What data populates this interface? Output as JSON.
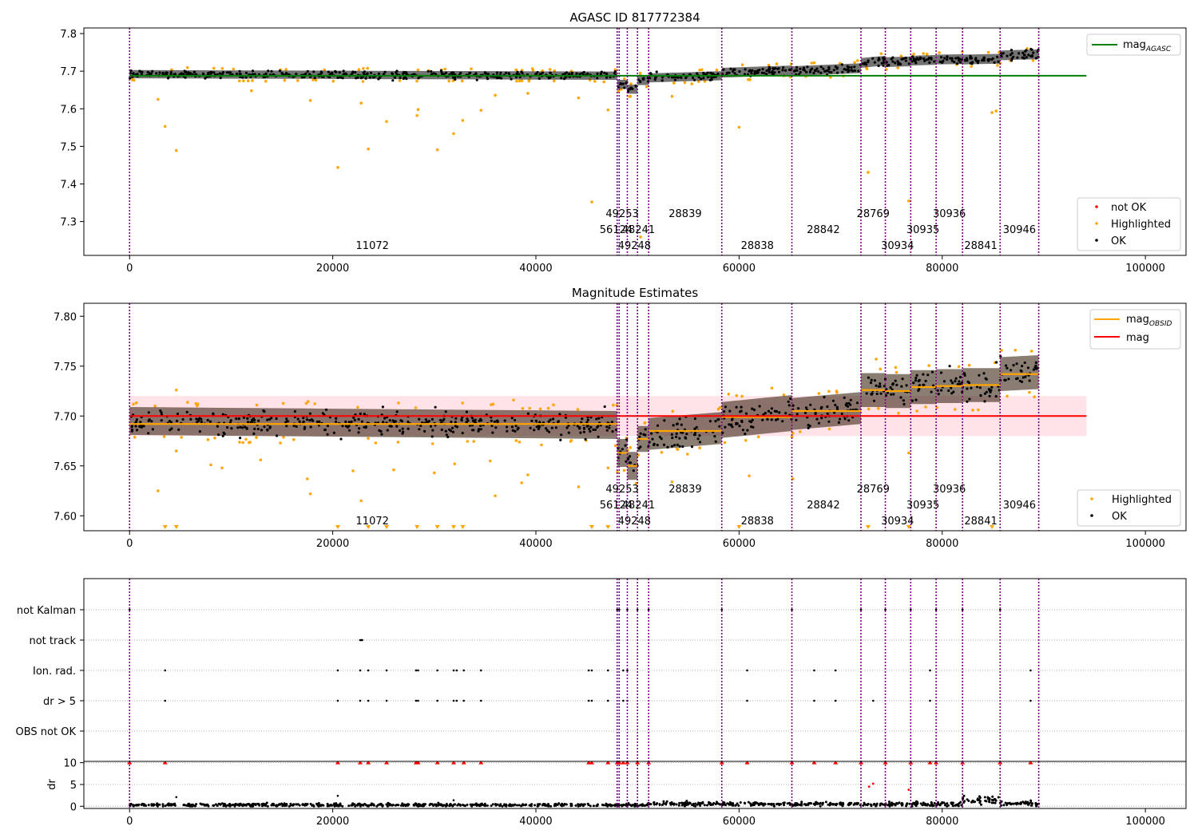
{
  "figure": {
    "background": "#ffffff"
  },
  "colors": {
    "ok": "#000000",
    "highlighted": "#ffa500",
    "not_ok": "#ff0000",
    "agasc_line": "#008000",
    "mag_line": "#ff0000",
    "obsid_mag": "#ffa500",
    "obs_boundary": "#800080",
    "band": "#ffc0cb",
    "grid": "#b0b0b0"
  },
  "chart_data": [
    {
      "type": "scatter",
      "title": "AGASC ID 817772384",
      "xlim": [
        -4500,
        104000
      ],
      "ylim": [
        7.21,
        7.815
      ],
      "xticks": [
        0,
        20000,
        40000,
        60000,
        80000,
        100000
      ],
      "yticks": [
        7.3,
        7.4,
        7.5,
        7.6,
        7.7,
        7.8
      ],
      "ytick_labels": [
        "7.3",
        "7.4",
        "7.5",
        "7.6",
        "7.7",
        "7.8"
      ],
      "agasc_mag": 7.688,
      "agasc_line_x": [
        0,
        94200
      ],
      "legend_upper": {
        "position": "upper right",
        "items": [
          {
            "label": "mag",
            "sub": "AGASC",
            "kind": "line",
            "color": "#008000"
          }
        ]
      },
      "legend_lower": {
        "position": "lower right",
        "items": [
          {
            "label": "not OK",
            "kind": "dot",
            "color": "#ff0000"
          },
          {
            "label": "Highlighted",
            "kind": "dot",
            "color": "#ffa500"
          },
          {
            "label": "OK",
            "kind": "dot",
            "color": "#000000"
          }
        ]
      },
      "ok_segments": [
        {
          "x0": 0,
          "x1": 48000,
          "start": 7.692,
          "end": 7.688,
          "half_width": 0.011
        },
        {
          "x0": 48000,
          "x1": 49000,
          "start": 7.665,
          "end": 7.665,
          "half_width": 0.012
        },
        {
          "x0": 49000,
          "x1": 50000,
          "start": 7.652,
          "end": 7.652,
          "half_width": 0.012
        },
        {
          "x0": 50000,
          "x1": 51100,
          "start": 7.675,
          "end": 7.675,
          "half_width": 0.012
        },
        {
          "x0": 51100,
          "x1": 58300,
          "start": 7.682,
          "end": 7.688,
          "half_width": 0.012
        },
        {
          "x0": 58300,
          "x1": 65200,
          "start": 7.696,
          "end": 7.702,
          "half_width": 0.013
        },
        {
          "x0": 65200,
          "x1": 72000,
          "start": 7.7,
          "end": 7.708,
          "half_width": 0.013
        },
        {
          "x0": 72000,
          "x1": 74400,
          "start": 7.722,
          "end": 7.728,
          "half_width": 0.013
        },
        {
          "x0": 74400,
          "x1": 76900,
          "start": 7.724,
          "end": 7.726,
          "half_width": 0.013
        },
        {
          "x0": 76900,
          "x1": 79400,
          "start": 7.728,
          "end": 7.73,
          "half_width": 0.013
        },
        {
          "x0": 79400,
          "x1": 82000,
          "start": 7.731,
          "end": 7.732,
          "half_width": 0.013
        },
        {
          "x0": 82000,
          "x1": 85700,
          "start": 7.731,
          "end": 7.733,
          "half_width": 0.013
        },
        {
          "x0": 85700,
          "x1": 89500,
          "start": 7.742,
          "end": 7.745,
          "half_width": 0.013
        }
      ],
      "highlighted_outliers": [
        {
          "x": 3500,
          "y": 7.553
        },
        {
          "x": 4600,
          "y": 7.489
        },
        {
          "x": 20500,
          "y": 7.444
        },
        {
          "x": 23500,
          "y": 7.493
        },
        {
          "x": 25300,
          "y": 7.566
        },
        {
          "x": 28300,
          "y": 7.582
        },
        {
          "x": 28400,
          "y": 7.598
        },
        {
          "x": 30300,
          "y": 7.491
        },
        {
          "x": 31900,
          "y": 7.534
        },
        {
          "x": 32800,
          "y": 7.569
        },
        {
          "x": 34600,
          "y": 7.596
        },
        {
          "x": 45500,
          "y": 7.352
        },
        {
          "x": 47100,
          "y": 7.597
        },
        {
          "x": 60000,
          "y": 7.551
        },
        {
          "x": 72700,
          "y": 7.431
        },
        {
          "x": 76700,
          "y": 7.355
        },
        {
          "x": 84900,
          "y": 7.59
        },
        {
          "x": 85300,
          "y": 7.594
        },
        {
          "x": 2800,
          "y": 7.625
        },
        {
          "x": 22800,
          "y": 7.615
        },
        {
          "x": 17800,
          "y": 7.622
        },
        {
          "x": 44200,
          "y": 7.629
        },
        {
          "x": 36000,
          "y": 7.636
        },
        {
          "x": 53400,
          "y": 7.633
        },
        {
          "x": 50300,
          "y": 7.259
        },
        {
          "x": 39200,
          "y": 7.641
        },
        {
          "x": 12000,
          "y": 7.648
        }
      ],
      "obs_boundaries": [
        0,
        48000,
        48200,
        49000,
        50000,
        51100,
        58300,
        65200,
        72000,
        74400,
        76900,
        79400,
        82000,
        85700,
        89500
      ],
      "obs_labels": [
        {
          "text": "11072",
          "x": 23900,
          "row": 2
        },
        {
          "text": "49253",
          "x": 48500,
          "row": 0
        },
        {
          "text": "56124",
          "x": 47900,
          "row": 1
        },
        {
          "text": "48241",
          "x": 50100,
          "row": 1
        },
        {
          "text": "49248",
          "x": 49700,
          "row": 2
        },
        {
          "text": "28839",
          "x": 54700,
          "row": 0
        },
        {
          "text": "28838",
          "x": 61800,
          "row": 2
        },
        {
          "text": "28842",
          "x": 68300,
          "row": 1
        },
        {
          "text": "28769",
          "x": 73200,
          "row": 0
        },
        {
          "text": "30934",
          "x": 75600,
          "row": 2
        },
        {
          "text": "30935",
          "x": 78100,
          "row": 1
        },
        {
          "text": "30936",
          "x": 80700,
          "row": 0
        },
        {
          "text": "28841",
          "x": 83800,
          "row": 2
        },
        {
          "text": "30946",
          "x": 87600,
          "row": 1
        }
      ]
    },
    {
      "type": "scatter",
      "title": "Magnitude Estimates",
      "xlim": [
        -4500,
        104000
      ],
      "ylim": [
        7.585,
        7.813
      ],
      "xticks": [
        0,
        20000,
        40000,
        60000,
        80000,
        100000
      ],
      "yticks": [
        7.6,
        7.65,
        7.7,
        7.75,
        7.8
      ],
      "ytick_labels": [
        "7.60",
        "7.65",
        "7.70",
        "7.75",
        "7.80"
      ],
      "mag": 7.7,
      "mag_band": [
        7.68,
        7.72
      ],
      "mag_line_x": [
        0,
        94200
      ],
      "legend_upper": {
        "position": "upper right",
        "items": [
          {
            "label": "mag",
            "sub": "OBSID",
            "kind": "line",
            "color": "#ffa500"
          },
          {
            "label": "mag",
            "kind": "line",
            "color": "#ff0000"
          }
        ]
      },
      "legend_lower": {
        "position": "lower right",
        "items": [
          {
            "label": "Highlighted",
            "kind": "dot",
            "color": "#ffa500"
          },
          {
            "label": "OK",
            "kind": "dot",
            "color": "#000000"
          }
        ]
      },
      "ok_segments": [
        {
          "x0": 0,
          "x1": 48000,
          "start": 7.695,
          "end": 7.691,
          "half_width": 0.014
        },
        {
          "x0": 48000,
          "x1": 49000,
          "start": 7.663,
          "end": 7.663,
          "half_width": 0.014
        },
        {
          "x0": 49000,
          "x1": 50000,
          "start": 7.65,
          "end": 7.65,
          "half_width": 0.014
        },
        {
          "x0": 50000,
          "x1": 51100,
          "start": 7.677,
          "end": 7.677,
          "half_width": 0.013
        },
        {
          "x0": 51100,
          "x1": 58300,
          "start": 7.682,
          "end": 7.688,
          "half_width": 0.016
        },
        {
          "x0": 58300,
          "x1": 65200,
          "start": 7.696,
          "end": 7.703,
          "half_width": 0.018
        },
        {
          "x0": 65200,
          "x1": 72000,
          "start": 7.702,
          "end": 7.708,
          "half_width": 0.016
        },
        {
          "x0": 72000,
          "x1": 74400,
          "start": 7.726,
          "end": 7.726,
          "half_width": 0.017
        },
        {
          "x0": 74400,
          "x1": 76900,
          "start": 7.725,
          "end": 7.725,
          "half_width": 0.017
        },
        {
          "x0": 76900,
          "x1": 79400,
          "start": 7.729,
          "end": 7.729,
          "half_width": 0.017
        },
        {
          "x0": 79400,
          "x1": 82000,
          "start": 7.73,
          "end": 7.73,
          "half_width": 0.017
        },
        {
          "x0": 82000,
          "x1": 85700,
          "start": 7.731,
          "end": 7.731,
          "half_width": 0.017
        },
        {
          "x0": 85700,
          "x1": 89500,
          "start": 7.742,
          "end": 7.744,
          "half_width": 0.017
        }
      ],
      "obsid_mags": [
        {
          "x0": 0,
          "x1": 48000,
          "y": 7.692
        },
        {
          "x0": 48000,
          "x1": 49000,
          "y": 7.663
        },
        {
          "x0": 49000,
          "x1": 50000,
          "y": 7.65
        },
        {
          "x0": 50000,
          "x1": 51100,
          "y": 7.677
        },
        {
          "x0": 51100,
          "x1": 58300,
          "y": 7.685
        },
        {
          "x0": 58300,
          "x1": 65200,
          "y": 7.699
        },
        {
          "x0": 65200,
          "x1": 72000,
          "y": 7.705
        },
        {
          "x0": 72000,
          "x1": 74400,
          "y": 7.726
        },
        {
          "x0": 74400,
          "x1": 76900,
          "y": 7.725
        },
        {
          "x0": 76900,
          "x1": 79400,
          "y": 7.729
        },
        {
          "x0": 79400,
          "x1": 82000,
          "y": 7.73
        },
        {
          "x0": 82000,
          "x1": 85700,
          "y": 7.731
        },
        {
          "x0": 85700,
          "x1": 89500,
          "y": 7.742
        }
      ],
      "highlighted_outliers": [
        {
          "x": 2800,
          "y": 7.625
        },
        {
          "x": 4600,
          "y": 7.665
        },
        {
          "x": 17800,
          "y": 7.622
        },
        {
          "x": 22800,
          "y": 7.615
        },
        {
          "x": 17500,
          "y": 7.637
        },
        {
          "x": 36000,
          "y": 7.62
        },
        {
          "x": 39200,
          "y": 7.641
        },
        {
          "x": 38600,
          "y": 7.633
        },
        {
          "x": 44200,
          "y": 7.629
        },
        {
          "x": 47100,
          "y": 7.648
        },
        {
          "x": 35500,
          "y": 7.655
        },
        {
          "x": 53400,
          "y": 7.634
        },
        {
          "x": 61000,
          "y": 7.64
        },
        {
          "x": 65300,
          "y": 7.637
        },
        {
          "x": 76700,
          "y": 7.663
        },
        {
          "x": 8000,
          "y": 7.651
        },
        {
          "x": 9100,
          "y": 7.648
        },
        {
          "x": 12900,
          "y": 7.656
        },
        {
          "x": 22000,
          "y": 7.645
        },
        {
          "x": 26000,
          "y": 7.646
        },
        {
          "x": 30000,
          "y": 7.643
        },
        {
          "x": 32000,
          "y": 7.652
        },
        {
          "x": 4600,
          "y": 7.726
        },
        {
          "x": 37800,
          "y": 7.716
        },
        {
          "x": 73500,
          "y": 7.757
        },
        {
          "x": 87200,
          "y": 7.766
        },
        {
          "x": 88800,
          "y": 7.765
        }
      ],
      "clipped_low_x": [
        3500,
        4600,
        20500,
        23500,
        25300,
        28300,
        30300,
        31900,
        32800,
        45500,
        47100,
        60000,
        72700,
        76700,
        84900
      ],
      "obs_boundaries": [
        0,
        48000,
        48200,
        49000,
        50000,
        51100,
        58300,
        65200,
        72000,
        74400,
        76900,
        79400,
        82000,
        85700,
        89500
      ],
      "obs_labels": [
        {
          "text": "11072",
          "x": 23900,
          "row": 2
        },
        {
          "text": "49253",
          "x": 48500,
          "row": 0
        },
        {
          "text": "56124",
          "x": 47900,
          "row": 1
        },
        {
          "text": "48241",
          "x": 50100,
          "row": 1
        },
        {
          "text": "49248",
          "x": 49700,
          "row": 2
        },
        {
          "text": "28839",
          "x": 54700,
          "row": 0
        },
        {
          "text": "28838",
          "x": 61800,
          "row": 2
        },
        {
          "text": "28842",
          "x": 68300,
          "row": 1
        },
        {
          "text": "28769",
          "x": 73200,
          "row": 0
        },
        {
          "text": "30934",
          "x": 75600,
          "row": 2
        },
        {
          "text": "30935",
          "x": 78100,
          "row": 1
        },
        {
          "text": "30936",
          "x": 80700,
          "row": 0
        },
        {
          "text": "28841",
          "x": 83800,
          "row": 2
        },
        {
          "text": "30946",
          "x": 87600,
          "row": 1
        }
      ]
    },
    {
      "type": "scatter",
      "title": "",
      "xlim": [
        -4500,
        104000
      ],
      "categories": [
        "not Kalman",
        "not track",
        "Ion. rad.",
        "dr > 5",
        "OBS not OK"
      ],
      "flags": {
        "not Kalman": [
          0,
          48000,
          48200,
          49000,
          50000,
          51100,
          58300,
          65200,
          72000,
          74400,
          76900,
          79400,
          82000,
          85700
        ],
        "not track": [
          22700,
          22800,
          22900
        ],
        "Ion. rad.": [
          3500,
          20500,
          22700,
          23500,
          25300,
          28200,
          28400,
          30300,
          31900,
          32200,
          32900,
          34600,
          45200,
          45500,
          47100,
          48600,
          49000,
          60800,
          67400,
          69500,
          78800,
          88700
        ],
        "dr > 5": [
          3500,
          20500,
          22700,
          23500,
          25300,
          28200,
          28400,
          30300,
          31900,
          32200,
          32900,
          34600,
          45200,
          45500,
          47100,
          48600,
          49000,
          60800,
          67400,
          69500,
          73200,
          78800,
          88700
        ],
        "OBS not OK": []
      },
      "obs_boundaries": [
        0,
        48000,
        48200,
        49000,
        50000,
        51100,
        58300,
        65200,
        72000,
        74400,
        76900,
        79400,
        82000,
        85700,
        89500
      ]
    },
    {
      "type": "scatter",
      "title": "",
      "ylabel": "dr",
      "xlim": [
        -4500,
        104000
      ],
      "ylim": [
        -0.5,
        10.3
      ],
      "xticks": [
        0,
        20000,
        40000,
        60000,
        80000,
        100000
      ],
      "yticks": [
        0,
        5,
        10
      ],
      "ytick_labels": [
        "0",
        "5",
        "10"
      ],
      "dr_segments": [
        {
          "x0": 0,
          "x1": 51000,
          "level": 0.3,
          "spread": 0.35
        },
        {
          "x0": 51000,
          "x1": 58000,
          "level": 0.6,
          "spread": 0.5
        },
        {
          "x0": 58000,
          "x1": 82000,
          "level": 0.5,
          "spread": 0.45
        },
        {
          "x0": 82000,
          "x1": 85700,
          "level": 1.4,
          "spread": 0.9
        },
        {
          "x0": 85700,
          "x1": 89500,
          "level": 0.6,
          "spread": 0.5
        }
      ],
      "red_points_x": [
        0,
        3500,
        20500,
        22700,
        23500,
        25300,
        28200,
        28400,
        30300,
        31900,
        32900,
        34600,
        45200,
        45500,
        47100,
        48000,
        48200,
        48600,
        49000,
        50000,
        51100,
        58300,
        60800,
        65200,
        67400,
        69500,
        72000,
        74400,
        76900,
        78800,
        79400,
        82000,
        85700,
        88700
      ],
      "red_points_mid": [
        {
          "x": 72800,
          "y": 4.5
        },
        {
          "x": 76700,
          "y": 3.8
        },
        {
          "x": 73200,
          "y": 5.2
        }
      ],
      "black_points_mid": [
        {
          "x": 20500,
          "y": 2.4
        },
        {
          "x": 4600,
          "y": 2.1
        },
        {
          "x": 31900,
          "y": 1.4
        }
      ],
      "obs_boundaries": [
        0,
        48000,
        48200,
        49000,
        50000,
        51100,
        58300,
        65200,
        72000,
        74400,
        76900,
        79400,
        82000,
        85700,
        89500
      ]
    }
  ]
}
